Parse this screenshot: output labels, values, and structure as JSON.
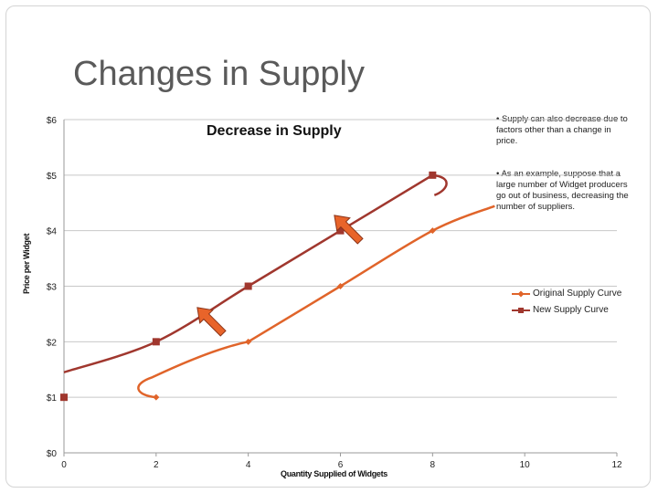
{
  "slide": {
    "title": "Changes in Supply",
    "bullets": [
      "• Supply can also decrease due to factors other than a change in price.",
      "• As an example, suppose that a large number of Widget producers go out of business, decreasing the number of suppliers."
    ]
  },
  "chart_data": {
    "type": "line",
    "title": "Decrease in Supply",
    "xlabel": "Quantity Supplied of Widgets",
    "ylabel": "Price per Widget",
    "xlim": [
      0,
      12
    ],
    "ylim": [
      0,
      6
    ],
    "x_ticks": [
      "0",
      "2",
      "4",
      "6",
      "8",
      "10",
      "12"
    ],
    "y_ticks": [
      "$0",
      "$1",
      "$2",
      "$3",
      "$4",
      "$5",
      "$6"
    ],
    "grid": "horizontal",
    "legend_position": "right",
    "series": [
      {
        "name": "Original Supply Curve",
        "color": "#e0642a",
        "marker": "diamond",
        "points": [
          [
            2,
            1
          ],
          [
            4,
            2
          ],
          [
            6,
            3
          ],
          [
            8,
            4
          ]
        ]
      },
      {
        "name": "New Supply Curve",
        "color": "#a0372e",
        "marker": "square",
        "points": [
          [
            0,
            1
          ],
          [
            2,
            2
          ],
          [
            4,
            3
          ],
          [
            6,
            4
          ],
          [
            8,
            5
          ]
        ]
      }
    ],
    "annotations": [
      {
        "type": "arrow",
        "direction": "up-left",
        "color": "#e8642a",
        "note": "shift arrow"
      },
      {
        "type": "arrow",
        "direction": "up-left",
        "color": "#e8642a",
        "note": "shift arrow"
      }
    ]
  }
}
